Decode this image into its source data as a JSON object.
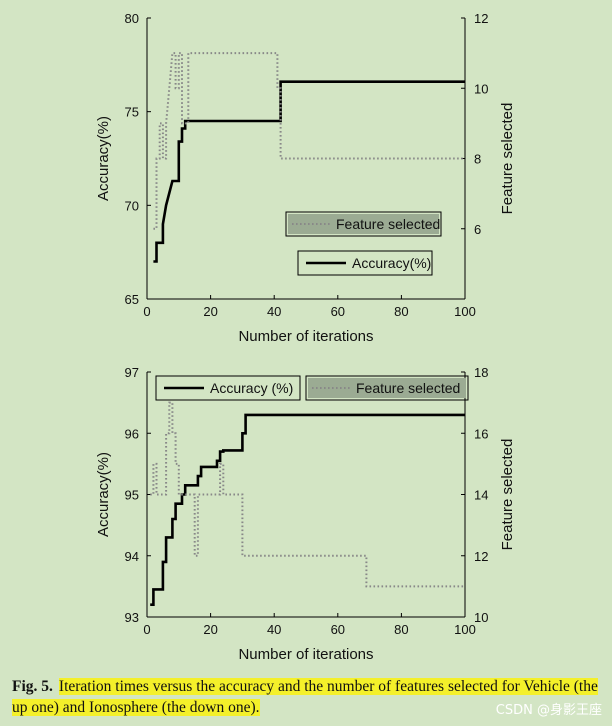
{
  "figure": {
    "caption_label": "Fig. 5.",
    "caption_text": "Iteration times versus the accuracy and the number of features selected for Vehicle (the up one) and Ionosphere (the down one).",
    "watermark": "CSDN @身影王座"
  },
  "chart_data": [
    {
      "type": "line",
      "name": "Vehicle",
      "xlabel": "Number of iterations",
      "ylabel_left": "Accuracy(%)",
      "ylabel_right": "Feature selected",
      "xlim": [
        0,
        100
      ],
      "ylim_left": [
        65,
        80
      ],
      "ylim_right": [
        4,
        12
      ],
      "xticks": [
        0,
        20,
        40,
        60,
        80,
        100
      ],
      "yticks_left": [
        65,
        70,
        75,
        80
      ],
      "yticks_right": [
        6,
        8,
        10,
        12
      ],
      "grid": false,
      "legend_layout": "two separate boxes, middle-right",
      "series": [
        {
          "name": "Accuracy(%)",
          "axis": "left",
          "style": "solid",
          "color": "#000000",
          "x": [
            2,
            3,
            3,
            5,
            5,
            6,
            8,
            8,
            10,
            10,
            11,
            11,
            12,
            12,
            42,
            42,
            100
          ],
          "y": [
            67.0,
            67.0,
            68.0,
            68.0,
            69.0,
            70.0,
            71.3,
            71.3,
            71.3,
            73.4,
            73.4,
            74.1,
            74.1,
            74.5,
            74.5,
            76.6,
            76.6
          ]
        },
        {
          "name": "Feature selected",
          "axis": "right",
          "style": "dotted",
          "color": "#888888",
          "x": [
            2,
            3,
            3,
            4,
            4,
            5,
            5,
            6,
            6,
            7,
            8,
            8,
            9,
            9,
            10,
            10,
            11,
            11,
            13,
            13,
            41,
            41,
            42,
            42,
            100
          ],
          "y": [
            6.0,
            6.0,
            8.0,
            8.0,
            9.0,
            9.0,
            8.0,
            8.0,
            9.0,
            10.0,
            11.0,
            11.0,
            11.0,
            10.0,
            10.0,
            11.0,
            11.0,
            9.0,
            9.0,
            11.0,
            11.0,
            10.0,
            10.0,
            8.0,
            8.0
          ]
        }
      ]
    },
    {
      "type": "line",
      "name": "Ionosphere",
      "xlabel": "Number of iterations",
      "ylabel_left": "Accuracy(%)",
      "ylabel_right": "Feature selected",
      "xlim": [
        0,
        100
      ],
      "ylim_left": [
        93,
        97
      ],
      "ylim_right": [
        10,
        18
      ],
      "xticks": [
        0,
        20,
        40,
        60,
        80,
        100
      ],
      "yticks_left": [
        93,
        94,
        95,
        96,
        97
      ],
      "yticks_right": [
        10,
        12,
        14,
        16,
        18
      ],
      "grid": false,
      "legend_layout": "two boxes along the top",
      "series": [
        {
          "name": "Accuracy (%)",
          "axis": "left",
          "style": "solid",
          "color": "#000000",
          "x": [
            1,
            2,
            2,
            5,
            5,
            6,
            6,
            8,
            8,
            9,
            9,
            11,
            11,
            12,
            12,
            16,
            16,
            17,
            17,
            22,
            22,
            23,
            23,
            24,
            24,
            30,
            30,
            31,
            31,
            100
          ],
          "y": [
            93.2,
            93.2,
            93.45,
            93.45,
            93.9,
            93.9,
            94.3,
            94.3,
            94.6,
            94.6,
            94.85,
            94.85,
            95.0,
            95.0,
            95.15,
            95.15,
            95.3,
            95.3,
            95.45,
            95.45,
            95.55,
            95.55,
            95.7,
            95.7,
            95.72,
            95.72,
            96.0,
            96.0,
            96.3,
            96.3
          ]
        },
        {
          "name": "Feature selected",
          "axis": "right",
          "style": "dotted",
          "color": "#888888",
          "x": [
            1,
            2,
            2,
            3,
            3,
            4,
            4,
            6,
            6,
            7,
            7,
            8,
            8,
            9,
            9,
            10,
            10,
            15,
            15,
            16,
            16,
            17,
            17,
            23,
            23,
            24,
            24,
            25,
            25,
            30,
            30,
            69,
            69,
            100
          ],
          "y": [
            14,
            14,
            15,
            15,
            14,
            14,
            14,
            14,
            16,
            16,
            17,
            17,
            16,
            16,
            15,
            15,
            14,
            14,
            12,
            12,
            14,
            14,
            14,
            14,
            15,
            15,
            14,
            14,
            14,
            14,
            12,
            12,
            11,
            11
          ]
        }
      ]
    }
  ]
}
